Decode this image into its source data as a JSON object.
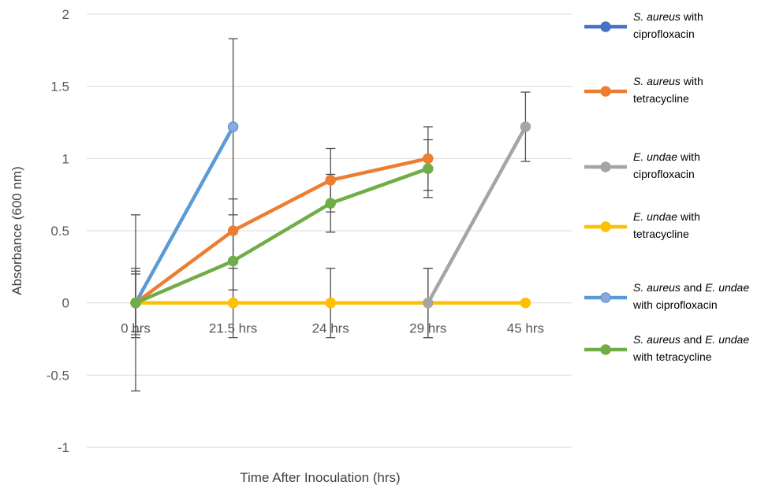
{
  "chart_data": {
    "type": "line",
    "xlabel": "Time After Inoculation (hrs)",
    "ylabel": "Absorbance (600 nm)",
    "categories": [
      "0 hrs",
      "21.5 hrs",
      "24 hrs",
      "29 hrs",
      "45 hrs"
    ],
    "ylim": [
      -1,
      2
    ],
    "yticks": [
      2,
      1.5,
      1,
      0.5,
      0,
      -0.5,
      -1
    ],
    "ytick_labels": [
      "2",
      "1.5",
      "1",
      "0.5",
      "0",
      "-0.5",
      "-1"
    ],
    "grid": true,
    "legend_position": "right",
    "series": [
      {
        "key": "sa_cipro",
        "color": "#4472C4",
        "legend_parts": [
          {
            "text": "S. aureus",
            "italic": true
          },
          {
            "text": " with",
            "italic": false
          },
          {
            "text": "\nciprofloxacin",
            "italic": false
          }
        ],
        "values": [
          null,
          null,
          null,
          null,
          null
        ],
        "errors": [
          null,
          null,
          null,
          null,
          null
        ]
      },
      {
        "key": "sa_tetra",
        "color": "#ED7D31",
        "legend_parts": [
          {
            "text": "S. aureus",
            "italic": true
          },
          {
            "text": " with",
            "italic": false
          },
          {
            "text": "\ntetracycline",
            "italic": false
          }
        ],
        "values": [
          0,
          0.5,
          0.85,
          1.0,
          null
        ],
        "errors": [
          0.22,
          0.22,
          0.22,
          0.22,
          null
        ]
      },
      {
        "key": "eu_cipro",
        "color": "#A5A5A5",
        "legend_parts": [
          {
            "text": "E. undae",
            "italic": true
          },
          {
            "text": " with",
            "italic": false
          },
          {
            "text": "\nciprofloxacin",
            "italic": false
          }
        ],
        "values": [
          null,
          null,
          null,
          0,
          1.22
        ],
        "errors": [
          null,
          null,
          null,
          0.24,
          0.24
        ]
      },
      {
        "key": "eu_tetra",
        "color": "#FFC000",
        "legend_parts": [
          {
            "text": "E. undae",
            "italic": true
          },
          {
            "text": " with",
            "italic": false
          },
          {
            "text": "\ntetracycline",
            "italic": false
          }
        ],
        "values": [
          0,
          0,
          0,
          0,
          0
        ],
        "errors": [
          0.24,
          0.24,
          0.24,
          0.24,
          null
        ]
      },
      {
        "key": "mix_cipro",
        "color": "#5B9BD5",
        "marker_fill": "#8EA9DB",
        "legend_parts": [
          {
            "text": "S. aureus",
            "italic": true
          },
          {
            "text": " and ",
            "italic": false
          },
          {
            "text": "E. undae",
            "italic": true
          },
          {
            "text": "\nwith ciprofloxacin",
            "italic": false
          }
        ],
        "values": [
          0,
          1.22,
          null,
          null,
          null
        ],
        "errors": [
          0.61,
          0.61,
          null,
          null,
          null
        ]
      },
      {
        "key": "mix_tetra",
        "color": "#70AD47",
        "legend_parts": [
          {
            "text": "S. aureus",
            "italic": true
          },
          {
            "text": " and ",
            "italic": false
          },
          {
            "text": "E. undae",
            "italic": true
          },
          {
            "text": "\nwith tetracycline",
            "italic": false
          }
        ],
        "values": [
          0,
          0.29,
          0.69,
          0.93,
          null
        ],
        "errors": [
          0.2,
          0.2,
          0.2,
          0.2,
          null
        ]
      }
    ]
  }
}
